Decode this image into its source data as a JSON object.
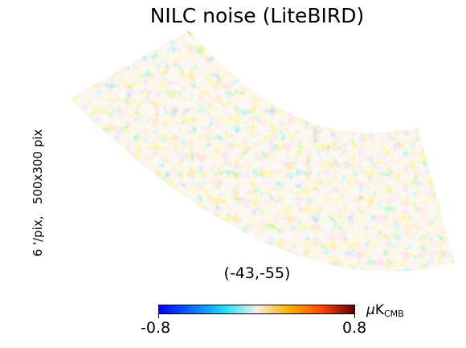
{
  "title": "NILC noise (LiteBIRD)",
  "side_label": "6 '/pix,   500x300 pix",
  "center_coords": "(-43,-55)",
  "colorbar": {
    "min_label": "-0.8",
    "max_label": "0.8",
    "unit_mu": "μ",
    "unit_main": "K",
    "unit_sub": "CMB",
    "colors": [
      "#0000ff",
      "#0a6dff",
      "#1fdcff",
      "#f3efe6",
      "#ffb000",
      "#ff4500",
      "#600000"
    ]
  }
}
